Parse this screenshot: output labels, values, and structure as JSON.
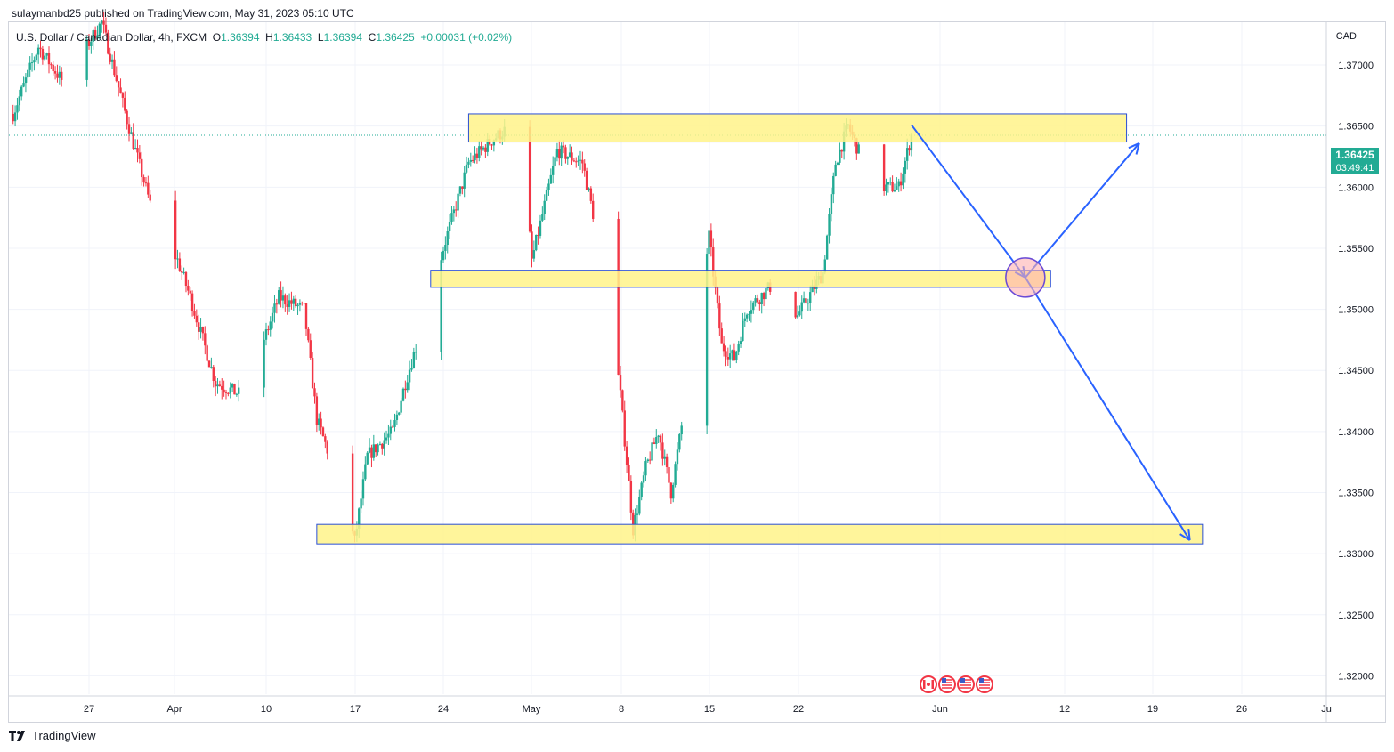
{
  "header": {
    "published": "sulaymanbd25 published on TradingView.com, May 31, 2023 05:10 UTC",
    "symbol": "U.S. Dollar / Canadian Dollar, 4h, FXCM",
    "open_label": "O",
    "open": "1.36394",
    "high_label": "H",
    "high": "1.36433",
    "low_label": "L",
    "low": "1.36394",
    "close_label": "C",
    "close": "1.36425",
    "change": "+0.00031 (+0.02%)"
  },
  "axis": {
    "currency": "CAD"
  },
  "last_price": {
    "price": "1.36425",
    "countdown": "03:49:41",
    "color": "#22ab94"
  },
  "footer": {
    "brand": "TradingView"
  },
  "colors": {
    "up": "#22ab94",
    "down": "#f23645",
    "zone_fill": "#fff38a",
    "zone_border": "#2a4fd6",
    "arrow": "#2962ff"
  },
  "icons": [
    "canada-flag-icon",
    "us-flag-icon",
    "us-flag-icon",
    "us-flag-icon"
  ],
  "chart_data": {
    "type": "candlestick",
    "title": "",
    "ylim": [
      1.3185,
      1.3735
    ],
    "x_ticks": [
      "27",
      "Apr",
      "10",
      "17",
      "24",
      "May",
      "8",
      "15",
      "22",
      "Jun",
      "12",
      "19",
      "26",
      "Ju"
    ],
    "y_ticks": [
      "1.37000",
      "1.36500",
      "1.36000",
      "1.35500",
      "1.35000",
      "1.34500",
      "1.34000",
      "1.33500",
      "1.33000",
      "1.32500",
      "1.32000"
    ],
    "price_path": [
      [
        "Mar 21",
        1.366
      ],
      [
        "Mar 23",
        1.3715
      ],
      [
        "Mar 25",
        1.3685
      ],
      [
        "Mar 28",
        1.3735
      ],
      [
        "Mar 30",
        1.3655
      ],
      [
        "Apr 1",
        1.358
      ],
      [
        "Apr 3",
        1.354
      ],
      [
        "Apr 4",
        1.351
      ],
      [
        "Apr 6",
        1.344
      ],
      [
        "Apr 8",
        1.343
      ],
      [
        "Apr 10",
        1.348
      ],
      [
        "Apr 11",
        1.351
      ],
      [
        "Apr 13",
        1.35
      ],
      [
        "Apr 14",
        1.341
      ],
      [
        "Apr 16",
        1.335
      ],
      [
        "Apr 17",
        1.331
      ],
      [
        "Apr 18",
        1.338
      ],
      [
        "Apr 20",
        1.34
      ],
      [
        "Apr 21",
        1.344
      ],
      [
        "Apr 23",
        1.351
      ],
      [
        "Apr 24",
        1.355
      ],
      [
        "Apr 26",
        1.362
      ],
      [
        "Apr 28",
        1.364
      ],
      [
        "Apr 30",
        1.3655
      ],
      [
        "May 1",
        1.354
      ],
      [
        "May 3",
        1.363
      ],
      [
        "May 5",
        1.362
      ],
      [
        "May 7",
        1.352
      ],
      [
        "May 8",
        1.343
      ],
      [
        "May 9",
        1.332
      ],
      [
        "May 10",
        1.337
      ],
      [
        "May 11",
        1.34
      ],
      [
        "May 12",
        1.335
      ],
      [
        "May 14",
        1.348
      ],
      [
        "May 15",
        1.356
      ],
      [
        "May 16",
        1.347
      ],
      [
        "May 17",
        1.346
      ],
      [
        "May 18",
        1.35
      ],
      [
        "May 20",
        1.352
      ],
      [
        "May 22",
        1.3495
      ],
      [
        "May 24",
        1.353
      ],
      [
        "May 25",
        1.362
      ],
      [
        "May 26",
        1.365
      ],
      [
        "May 28",
        1.36
      ],
      [
        "May 30",
        1.36
      ],
      [
        "May 31",
        1.36425
      ]
    ],
    "zones": [
      {
        "from": "Apr 26",
        "to": "Jun 17",
        "low": 1.3637,
        "high": 1.366
      },
      {
        "from": "Apr 23",
        "to": "Jun 11",
        "low": 1.3518,
        "high": 1.3532
      },
      {
        "from": "Apr 14",
        "to": "Jun 23",
        "low": 1.3308,
        "high": 1.3324
      }
    ],
    "projection": [
      [
        "May 31",
        1.3651
      ],
      [
        "Jun 9",
        1.3526
      ],
      [
        "Jun 18",
        1.3636
      ]
    ],
    "projection_alt": [
      [
        "Jun 9",
        1.3526
      ],
      [
        "Jun 22",
        1.3311
      ]
    ],
    "grid": true
  }
}
